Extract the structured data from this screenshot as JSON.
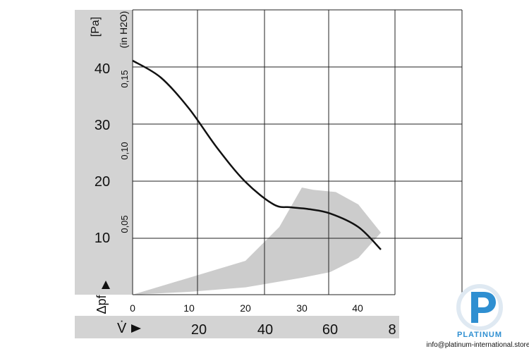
{
  "chart_data": {
    "type": "line",
    "title": "",
    "xlabel": "V̇",
    "ylabel": "Δpf",
    "y_unit_primary": "[Pa]",
    "y_unit_secondary": "(in H2O)",
    "y_ticks_primary": [
      "40",
      "30",
      "20",
      "10"
    ],
    "y_ticks_secondary": [
      "0,15",
      "0,10",
      "0,05"
    ],
    "x_ticks_inner": [
      "0",
      "10",
      "20",
      "30",
      "40"
    ],
    "x_ticks_outer": [
      "20",
      "40",
      "60",
      "8"
    ],
    "xlim": [
      0,
      45
    ],
    "ylim_pa": [
      0,
      42
    ],
    "grid": true,
    "series": [
      {
        "x": [
          0,
          5,
          10,
          15,
          20,
          25,
          28,
          31,
          35,
          40,
          44
        ],
        "y": [
          41.5,
          38.5,
          33,
          26,
          20,
          16,
          15.5,
          15.2,
          14.4,
          12,
          8
        ]
      }
    ],
    "shaded_region": {
      "upper": [
        [
          0,
          0
        ],
        [
          20,
          6
        ],
        [
          26,
          12
        ],
        [
          30,
          19
        ],
        [
          32,
          18.6
        ],
        [
          36,
          18.2
        ],
        [
          40,
          16
        ],
        [
          44,
          11
        ]
      ],
      "lower": [
        [
          44,
          11
        ],
        [
          40,
          6.5
        ],
        [
          35,
          4
        ],
        [
          30,
          3
        ],
        [
          20,
          1.3
        ],
        [
          10,
          0.5
        ],
        [
          0,
          0
        ]
      ]
    }
  },
  "watermark": {
    "brand": "PLATINUM",
    "email": "info@platinum-international.store",
    "color": "#2f8fd1"
  },
  "style": {
    "sidebar_color": "#d3d3d3",
    "curve_color": "#111111",
    "region_color": "#cccccc"
  }
}
